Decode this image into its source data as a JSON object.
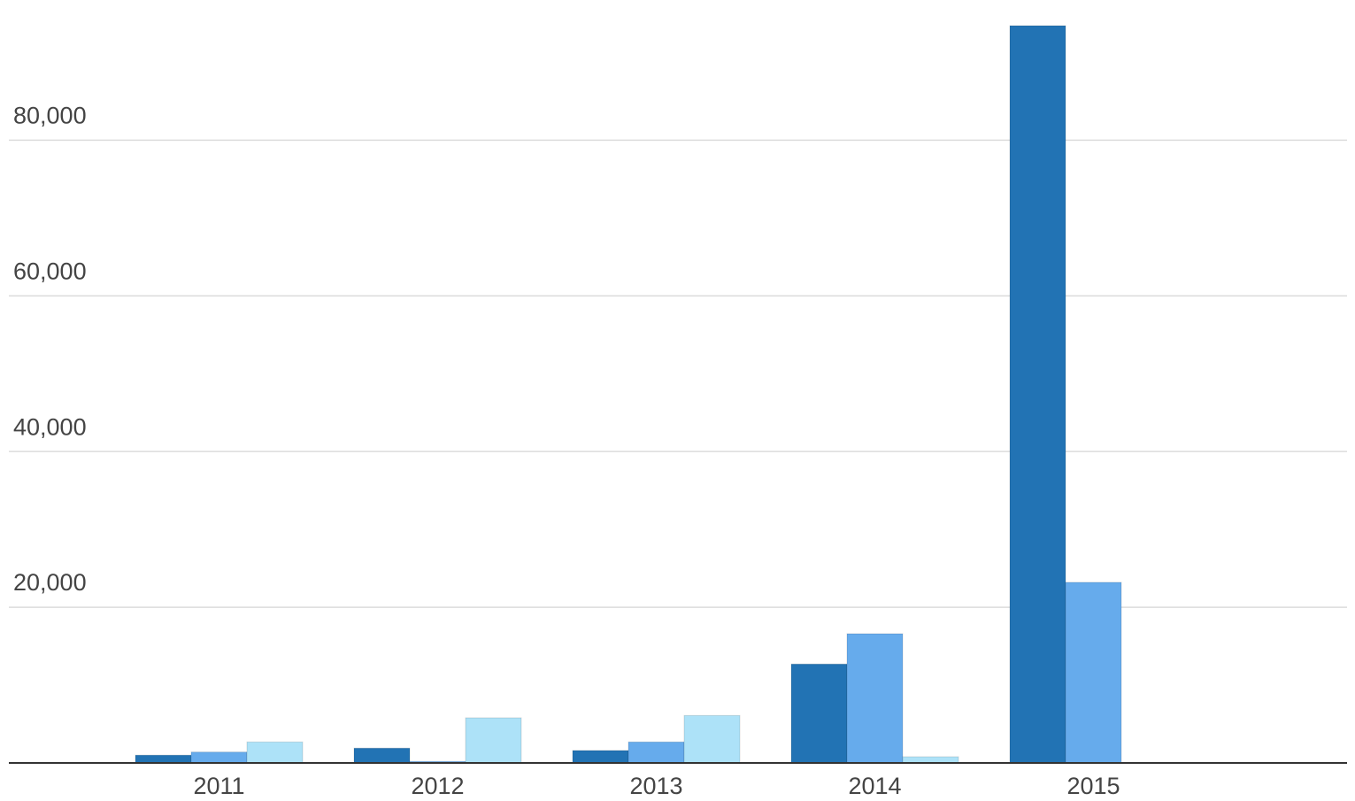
{
  "chart_data": {
    "type": "bar",
    "categories": [
      "2011",
      "2012",
      "2013",
      "2014",
      "2015"
    ],
    "series": [
      {
        "color": "#2273b4",
        "values": [
          1000,
          1900,
          1600,
          12700,
          94700
        ]
      },
      {
        "color": "#66abec",
        "values": [
          1400,
          200,
          2700,
          16600,
          23200
        ]
      },
      {
        "color": "#ade2f8",
        "values": [
          2700,
          5800,
          6100,
          800,
          null
        ]
      }
    ],
    "ylim": [
      0,
      98000
    ],
    "yticks": [
      {
        "value": 20000,
        "label": "20,000"
      },
      {
        "value": 40000,
        "label": "40,000"
      },
      {
        "value": 60000,
        "label": "60,000"
      },
      {
        "value": 80000,
        "label": "80,000"
      }
    ],
    "grid": true
  }
}
